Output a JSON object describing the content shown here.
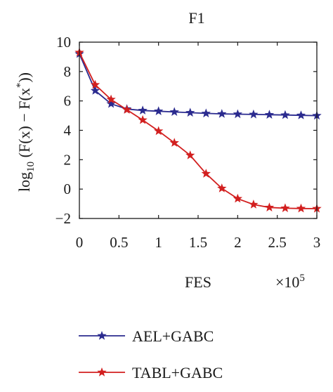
{
  "chart_data": {
    "type": "line",
    "title": "F1",
    "xlabel": "FES",
    "x_multiplier": "×10",
    "x_multiplier_exp": "5",
    "ylabel": {
      "prefix": "log",
      "sub": "10",
      "mid": " (F(x) − F(x",
      "sup": "*",
      "end": "))"
    },
    "xlim": [
      0,
      3
    ],
    "ylim": [
      -2,
      10
    ],
    "xticks": [
      {
        "v": 0,
        "label": "0"
      },
      {
        "v": 0.5,
        "label": "0.5"
      },
      {
        "v": 1,
        "label": "1"
      },
      {
        "v": 1.5,
        "label": "1.5"
      },
      {
        "v": 2,
        "label": "2"
      },
      {
        "v": 2.5,
        "label": "2.5"
      },
      {
        "v": 3,
        "label": "3"
      }
    ],
    "yticks": [
      {
        "v": -2,
        "label": "−2"
      },
      {
        "v": 0,
        "label": "0"
      },
      {
        "v": 2,
        "label": "2"
      },
      {
        "v": 4,
        "label": "4"
      },
      {
        "v": 6,
        "label": "6"
      },
      {
        "v": 8,
        "label": "8"
      },
      {
        "v": 10,
        "label": "10"
      }
    ],
    "grid": false,
    "legend_position": "bottom",
    "series": [
      {
        "name": "AEL+GABC",
        "color": "#2b2b8f",
        "x": [
          0,
          0.2,
          0.4,
          0.6,
          0.8,
          1.0,
          1.2,
          1.4,
          1.6,
          1.8,
          2.0,
          2.2,
          2.4,
          2.6,
          2.8,
          3.0
        ],
        "y": [
          9.2,
          6.7,
          5.8,
          5.45,
          5.35,
          5.3,
          5.25,
          5.2,
          5.15,
          5.12,
          5.1,
          5.08,
          5.06,
          5.04,
          5.02,
          5.0
        ]
      },
      {
        "name": "TABL+GABC",
        "color": "#d21f1f",
        "x": [
          0,
          0.2,
          0.4,
          0.6,
          0.8,
          1.0,
          1.2,
          1.4,
          1.6,
          1.8,
          2.0,
          2.2,
          2.4,
          2.6,
          2.8,
          3.0
        ],
        "y": [
          9.3,
          7.1,
          6.1,
          5.4,
          4.7,
          3.95,
          3.15,
          2.3,
          1.05,
          0.05,
          -0.65,
          -1.05,
          -1.25,
          -1.3,
          -1.32,
          -1.33
        ]
      }
    ]
  }
}
